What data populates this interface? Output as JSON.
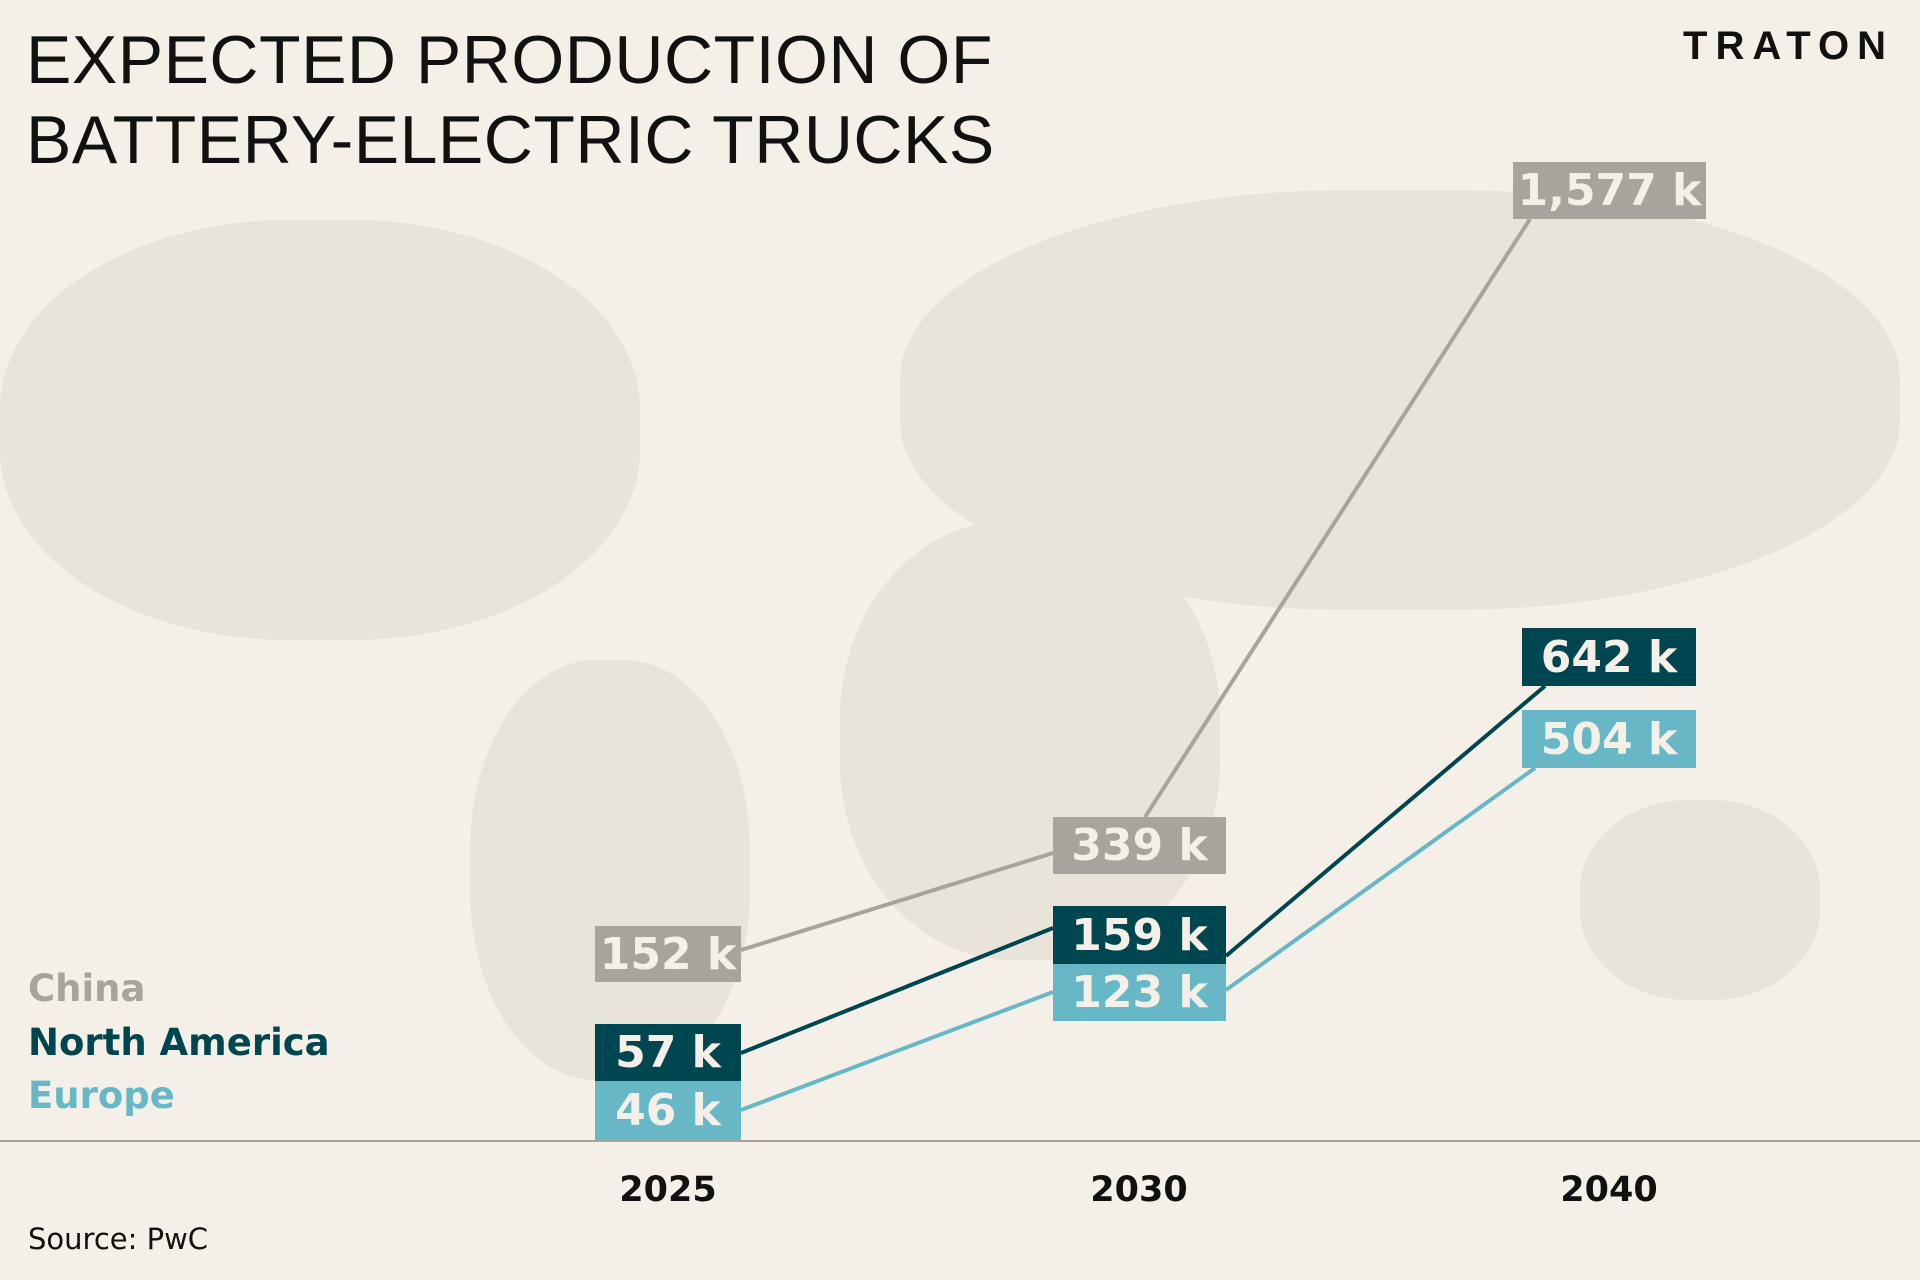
{
  "title_lines": [
    "EXPECTED PRODUCTION OF",
    "BATTERY-ELECTRIC TRUCKS"
  ],
  "logo": "TRATON",
  "source": "Source: PwC",
  "colors": {
    "China": "#a8a49d",
    "North America": "#004651",
    "Europe": "#67b7c7",
    "background": "#f4f0e7"
  },
  "chart_data": {
    "type": "line",
    "title": "EXPECTED PRODUCTION OF BATTERY-ELECTRIC TRUCKS",
    "categories": [
      "2025",
      "2030",
      "2040"
    ],
    "unit": "thousand trucks",
    "series": [
      {
        "name": "China",
        "values": [
          152,
          339,
          1577
        ],
        "labels": [
          "152 k",
          "339 k",
          "1,577 k"
        ]
      },
      {
        "name": "North America",
        "values": [
          57,
          159,
          642
        ],
        "labels": [
          "57 k",
          "159 k",
          "642 k"
        ]
      },
      {
        "name": "Europe",
        "values": [
          46,
          123,
          504
        ],
        "labels": [
          "46 k",
          "123 k",
          "504 k"
        ]
      }
    ],
    "legend": [
      "China",
      "North America",
      "Europe"
    ],
    "legend_placement": "bottom-left",
    "grid": false
  }
}
